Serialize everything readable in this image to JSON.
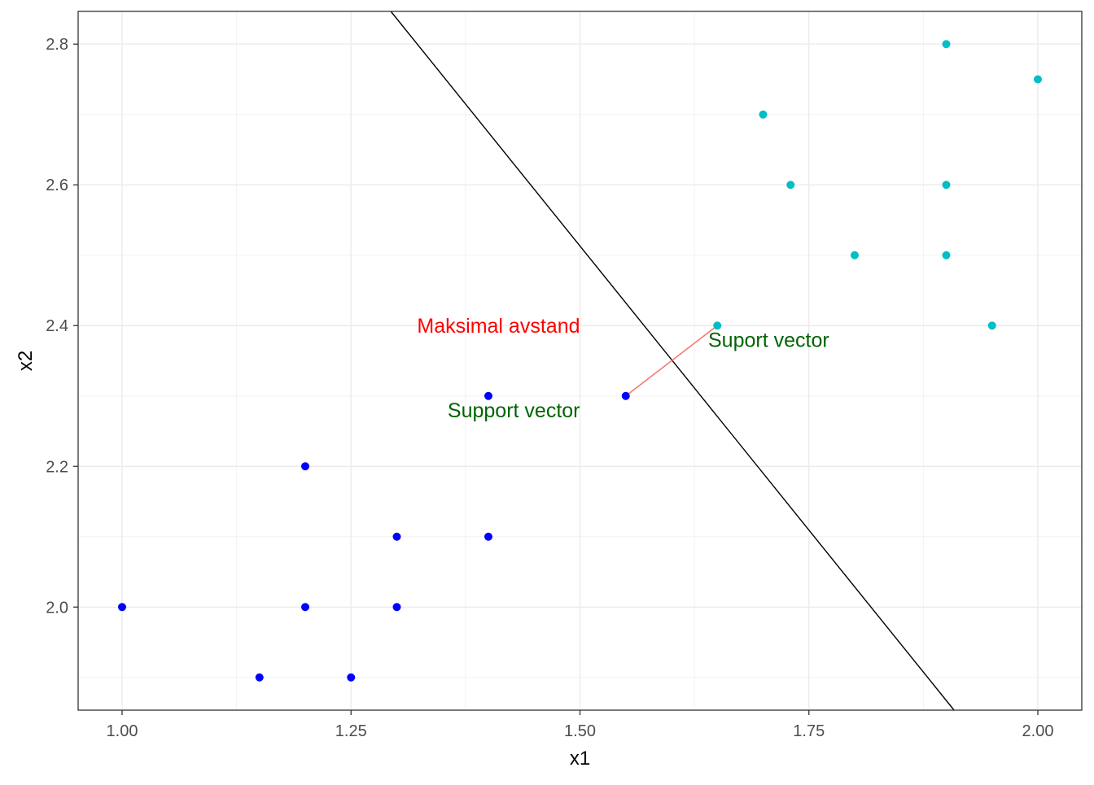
{
  "chart_data": {
    "type": "scatter",
    "xlabel": "x1",
    "ylabel": "x2",
    "xlim": [
      0.952,
      2.048
    ],
    "ylim": [
      1.8535,
      2.8465
    ],
    "x_ticks": [
      1.0,
      1.25,
      1.5,
      1.75,
      2.0
    ],
    "x_tick_labels": [
      "1.00",
      "1.25",
      "1.50",
      "1.75",
      "2.00"
    ],
    "y_ticks": [
      2.0,
      2.2,
      2.4,
      2.6,
      2.8
    ],
    "y_tick_labels": [
      "2.0",
      "2.2",
      "2.4",
      "2.6",
      "2.8"
    ],
    "grid": true,
    "series": [
      {
        "color": "#0000ff",
        "points": [
          {
            "x": 1.0,
            "y": 2.0
          },
          {
            "x": 1.15,
            "y": 1.9
          },
          {
            "x": 1.2,
            "y": 2.0
          },
          {
            "x": 1.2,
            "y": 2.2
          },
          {
            "x": 1.25,
            "y": 1.9
          },
          {
            "x": 1.3,
            "y": 2.0
          },
          {
            "x": 1.3,
            "y": 2.1
          },
          {
            "x": 1.4,
            "y": 2.1
          },
          {
            "x": 1.4,
            "y": 2.3
          },
          {
            "x": 1.55,
            "y": 2.3
          }
        ]
      },
      {
        "color": "#00bfc4",
        "points": [
          {
            "x": 1.65,
            "y": 2.4
          },
          {
            "x": 1.7,
            "y": 2.7
          },
          {
            "x": 1.73,
            "y": 2.6
          },
          {
            "x": 1.8,
            "y": 2.5
          },
          {
            "x": 1.9,
            "y": 2.8
          },
          {
            "x": 1.9,
            "y": 2.6
          },
          {
            "x": 1.9,
            "y": 2.5
          },
          {
            "x": 1.95,
            "y": 2.4
          },
          {
            "x": 2.0,
            "y": 2.75
          }
        ]
      }
    ],
    "lines": [
      {
        "x": [
          1.2935,
          1.9085
        ],
        "y": [
          2.8465,
          1.8535
        ],
        "color": "#000000"
      },
      {
        "x": [
          1.55,
          1.65
        ],
        "y": [
          2.3,
          2.4
        ],
        "color": "#f8766d"
      }
    ],
    "annotations": [
      {
        "text": "Maksimal avstand",
        "x": 1.5,
        "y": 2.4,
        "color": "#ff0000",
        "hjust": "right"
      },
      {
        "text": "Suport vector",
        "x": 1.64,
        "y": 2.38,
        "color": "#006400",
        "hjust": "left"
      },
      {
        "text": "Support vector",
        "x": 1.5,
        "y": 2.28,
        "color": "#006400",
        "hjust": "right"
      }
    ]
  }
}
